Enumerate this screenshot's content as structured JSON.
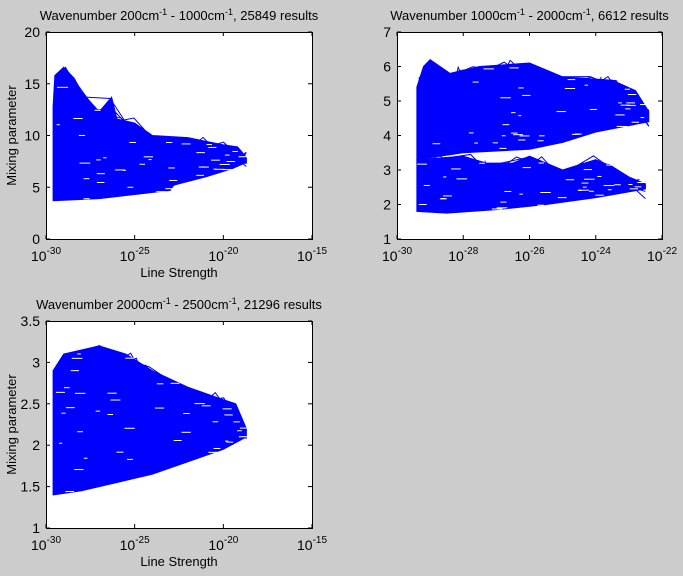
{
  "figure": {
    "background": "#cccccc",
    "line_color": "#0000ff"
  },
  "chart_data": [
    {
      "type": "line",
      "title_segments": [
        "Wavenumber 200cm",
        "-1",
        " - 1000cm",
        "-1",
        ", 25849 results"
      ],
      "xlabel": "Line Strength",
      "ylabel": "Mixing parameter",
      "xscale": "log",
      "xlim_log10": [
        -30,
        -15
      ],
      "ylim": [
        0,
        20
      ],
      "xticks_exp": [
        "-30",
        "-25",
        "-20",
        "-15"
      ],
      "yticks": [
        "0",
        "5",
        "10",
        "15",
        "20"
      ],
      "grid": false,
      "bands": [
        {
          "upper": [
            [
              -29.6,
              12.8
            ],
            [
              -29.5,
              15.8
            ],
            [
              -29.0,
              16.6
            ],
            [
              -28.4,
              15.5
            ],
            [
              -28.0,
              14.2
            ],
            [
              -27.0,
              12.3
            ],
            [
              -26.3,
              13.7
            ],
            [
              -26.0,
              11.6
            ],
            [
              -25.0,
              11.2
            ],
            [
              -24.0,
              10.0
            ],
            [
              -22.0,
              9.8
            ],
            [
              -20.0,
              9.1
            ],
            [
              -19.2,
              8.9
            ],
            [
              -18.7,
              7.9
            ]
          ],
          "lower": [
            [
              -29.6,
              3.7
            ],
            [
              -27.0,
              3.9
            ],
            [
              -25.0,
              4.3
            ],
            [
              -23.0,
              4.7
            ],
            [
              -22.8,
              5.2
            ],
            [
              -21.0,
              6.0
            ],
            [
              -19.5,
              6.8
            ],
            [
              -18.7,
              7.4
            ]
          ]
        }
      ]
    },
    {
      "type": "line",
      "title_segments": [
        "Wavenumber 1000cm",
        "-1",
        " - 2000cm",
        "-1",
        ", 6612 results"
      ],
      "xlabel": "",
      "ylabel": "",
      "xscale": "log",
      "xlim_log10": [
        -30,
        -22
      ],
      "ylim": [
        1,
        7
      ],
      "xticks_exp": [
        "-30",
        "-28",
        "-26",
        "-24",
        "-22"
      ],
      "yticks": [
        "1",
        "2",
        "3",
        "4",
        "5",
        "6",
        "7"
      ],
      "grid": false,
      "bands": [
        {
          "upper": [
            [
              -29.4,
              5.4
            ],
            [
              -29.2,
              6.0
            ],
            [
              -29.0,
              6.2
            ],
            [
              -28.4,
              5.8
            ],
            [
              -27.5,
              6.0
            ],
            [
              -26.0,
              6.1
            ],
            [
              -25.0,
              5.7
            ],
            [
              -23.5,
              5.6
            ],
            [
              -22.8,
              5.3
            ],
            [
              -22.4,
              4.7
            ]
          ],
          "lower": [
            [
              -29.4,
              3.3
            ],
            [
              -28.0,
              3.5
            ],
            [
              -26.0,
              3.6
            ],
            [
              -25.0,
              3.8
            ],
            [
              -24.0,
              4.1
            ],
            [
              -22.4,
              4.4
            ]
          ]
        },
        {
          "upper": [
            [
              -29.4,
              3.3
            ],
            [
              -28.0,
              3.4
            ],
            [
              -27.3,
              3.2
            ],
            [
              -26.5,
              3.2
            ],
            [
              -26.0,
              3.4
            ],
            [
              -25.0,
              3.0
            ],
            [
              -24.0,
              3.3
            ],
            [
              -23.5,
              3.1
            ],
            [
              -23.0,
              2.8
            ],
            [
              -22.5,
              2.6
            ]
          ],
          "lower": [
            [
              -29.4,
              1.8
            ],
            [
              -28.5,
              1.75
            ],
            [
              -27.0,
              1.85
            ],
            [
              -25.5,
              2.0
            ],
            [
              -24.0,
              2.2
            ],
            [
              -22.5,
              2.45
            ]
          ]
        }
      ]
    },
    {
      "type": "line",
      "title_segments": [
        "Wavenumber 2000cm",
        "-1",
        " - 2500cm",
        "-1",
        ", 21296 results"
      ],
      "xlabel": "Line Strength",
      "ylabel": "Mixing parameter",
      "xscale": "log",
      "xlim_log10": [
        -30,
        -15
      ],
      "ylim": [
        1,
        3.5
      ],
      "xticks_exp": [
        "-30",
        "-25",
        "-20",
        "-15"
      ],
      "yticks": [
        "1",
        "1.5",
        "2",
        "2.5",
        "3",
        "3.5"
      ],
      "grid": false,
      "bands": [
        {
          "upper": [
            [
              -29.6,
              2.9
            ],
            [
              -29.0,
              3.1
            ],
            [
              -28.0,
              3.15
            ],
            [
              -27.0,
              3.2
            ],
            [
              -25.5,
              3.1
            ],
            [
              -24.0,
              2.9
            ],
            [
              -22.0,
              2.7
            ],
            [
              -20.0,
              2.55
            ],
            [
              -19.3,
              2.5
            ],
            [
              -18.7,
              2.2
            ]
          ],
          "lower": [
            [
              -29.6,
              1.4
            ],
            [
              -28.0,
              1.45
            ],
            [
              -26.0,
              1.55
            ],
            [
              -24.0,
              1.65
            ],
            [
              -22.0,
              1.8
            ],
            [
              -20.0,
              1.95
            ],
            [
              -18.7,
              2.1
            ]
          ]
        }
      ]
    }
  ]
}
